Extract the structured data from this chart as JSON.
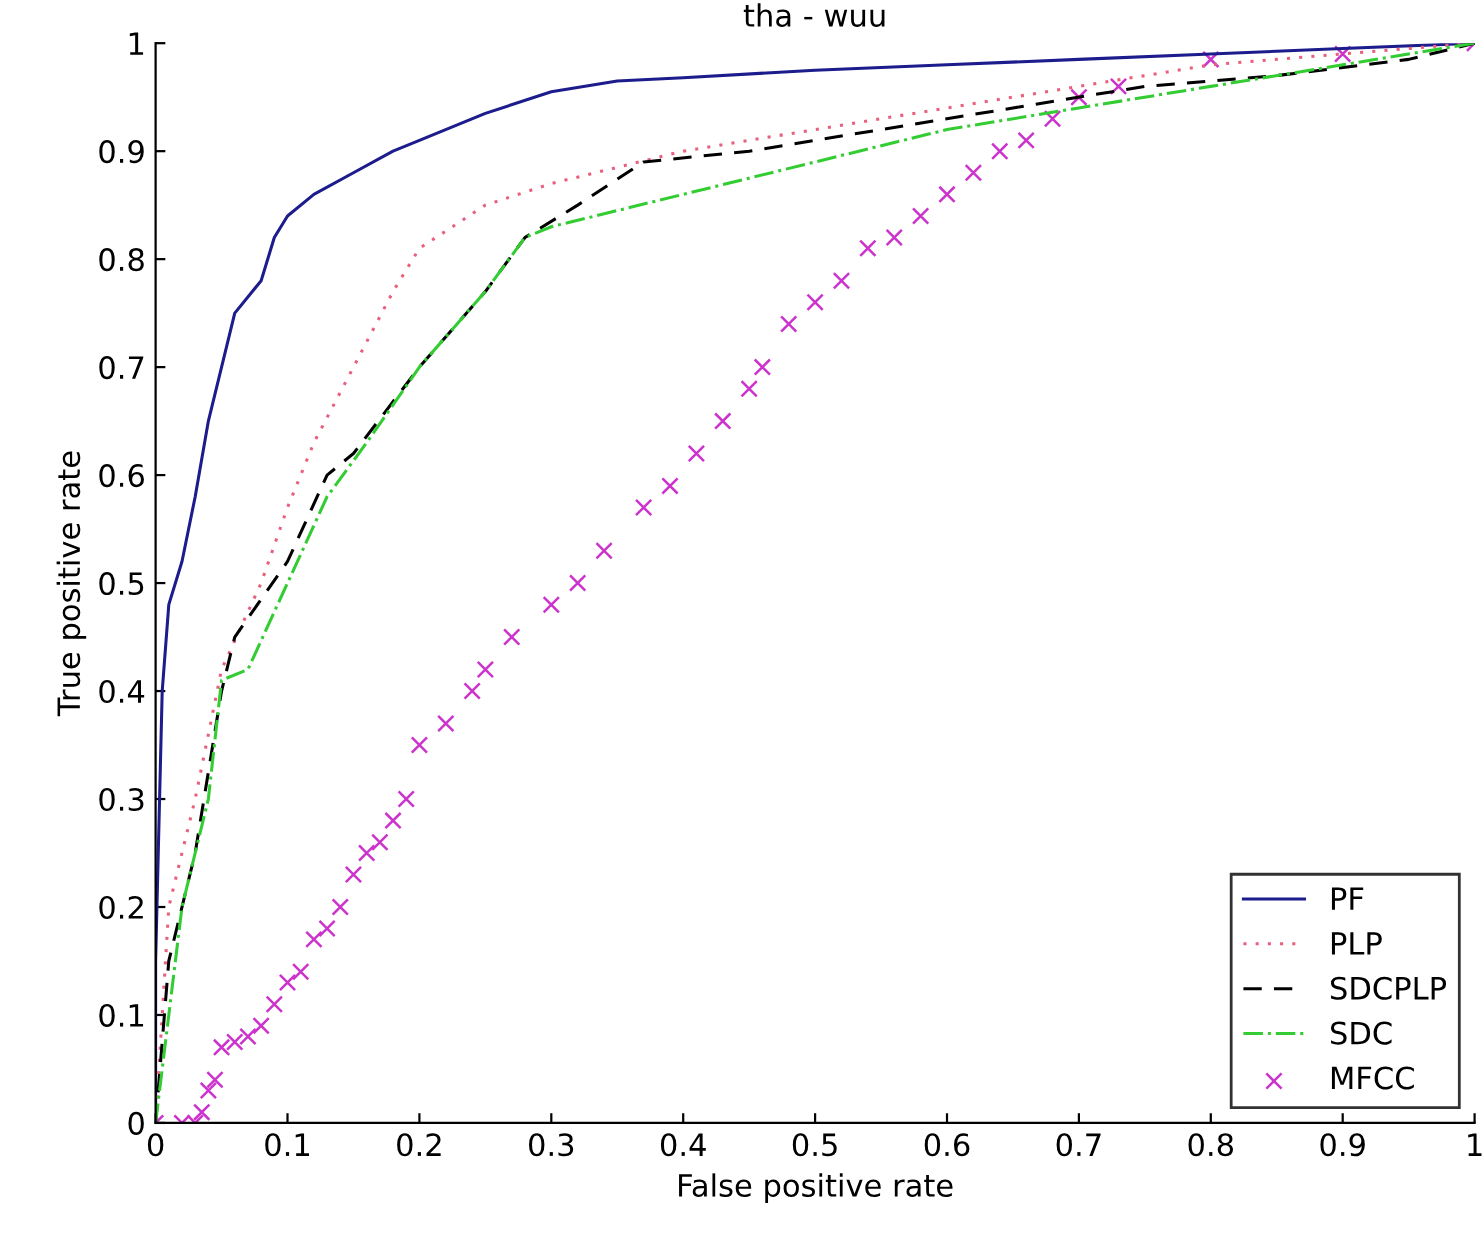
{
  "chart_data": {
    "type": "line",
    "title": "tha - wuu",
    "xlabel": "False positive rate",
    "ylabel": "True positive rate",
    "xlim": [
      0,
      1
    ],
    "ylim": [
      0,
      1
    ],
    "xticks": [
      0,
      0.1,
      0.2,
      0.3,
      0.4,
      0.5,
      0.6,
      0.7,
      0.8,
      0.9,
      1
    ],
    "yticks": [
      0,
      0.1,
      0.2,
      0.3,
      0.4,
      0.5,
      0.6,
      0.7,
      0.8,
      0.9,
      1
    ],
    "grid": false,
    "legend": "bottom right",
    "series": [
      {
        "name": "PF",
        "color": "#1c1c8c",
        "line_style": "solid",
        "marker": "none",
        "x": [
          0,
          0,
          0.005,
          0.01,
          0.02,
          0.03,
          0.04,
          0.05,
          0.06,
          0.08,
          0.09,
          0.1,
          0.12,
          0.15,
          0.18,
          0.2,
          0.25,
          0.3,
          0.35,
          0.4,
          0.5,
          0.6,
          0.7,
          0.8,
          0.9,
          1
        ],
        "values": [
          0,
          0.15,
          0.4,
          0.48,
          0.52,
          0.58,
          0.65,
          0.7,
          0.75,
          0.78,
          0.82,
          0.84,
          0.86,
          0.88,
          0.9,
          0.91,
          0.935,
          0.955,
          0.965,
          0.968,
          0.975,
          0.98,
          0.985,
          0.99,
          0.995,
          1
        ]
      },
      {
        "name": "PLP",
        "color": "#e8607e",
        "line_style": "dotted",
        "marker": "none",
        "x": [
          0,
          0.01,
          0.03,
          0.05,
          0.08,
          0.1,
          0.12,
          0.15,
          0.18,
          0.2,
          0.25,
          0.3,
          0.4,
          0.5,
          0.6,
          0.7,
          0.8,
          0.9,
          1
        ],
        "values": [
          0,
          0.2,
          0.3,
          0.42,
          0.5,
          0.57,
          0.63,
          0.7,
          0.77,
          0.81,
          0.85,
          0.87,
          0.9,
          0.92,
          0.94,
          0.96,
          0.98,
          0.99,
          1
        ]
      },
      {
        "name": "SDCPLP",
        "color": "#000000",
        "line_style": "dashed",
        "marker": "none",
        "x": [
          0,
          0.01,
          0.03,
          0.05,
          0.06,
          0.1,
          0.13,
          0.15,
          0.2,
          0.25,
          0.28,
          0.32,
          0.37,
          0.45,
          0.55,
          0.65,
          0.75,
          0.85,
          0.95,
          1
        ],
        "values": [
          0,
          0.15,
          0.25,
          0.4,
          0.45,
          0.52,
          0.6,
          0.62,
          0.7,
          0.77,
          0.82,
          0.85,
          0.89,
          0.9,
          0.92,
          0.94,
          0.96,
          0.97,
          0.985,
          1
        ]
      },
      {
        "name": "SDC",
        "color": "#33cc33",
        "line_style": "dashdot",
        "marker": "none",
        "x": [
          0,
          0.02,
          0.04,
          0.05,
          0.07,
          0.1,
          0.13,
          0.16,
          0.2,
          0.25,
          0.28,
          0.3,
          0.4,
          0.5,
          0.6,
          0.7,
          0.8,
          0.9,
          1
        ],
        "values": [
          0,
          0.2,
          0.3,
          0.41,
          0.42,
          0.5,
          0.58,
          0.63,
          0.7,
          0.77,
          0.82,
          0.83,
          0.86,
          0.89,
          0.92,
          0.94,
          0.96,
          0.98,
          1
        ]
      },
      {
        "name": "MFCC",
        "type": "scatter",
        "color": "#cc33cc",
        "marker": "cross",
        "x": [
          0,
          0.02,
          0.03,
          0.035,
          0.04,
          0.045,
          0.05,
          0.06,
          0.07,
          0.08,
          0.09,
          0.1,
          0.11,
          0.12,
          0.13,
          0.14,
          0.15,
          0.16,
          0.17,
          0.18,
          0.19,
          0.2,
          0.22,
          0.24,
          0.25,
          0.27,
          0.3,
          0.32,
          0.34,
          0.37,
          0.39,
          0.41,
          0.43,
          0.45,
          0.46,
          0.48,
          0.5,
          0.52,
          0.54,
          0.56,
          0.58,
          0.6,
          0.62,
          0.64,
          0.66,
          0.68,
          0.7,
          0.73,
          0.8,
          0.9,
          1
        ],
        "values": [
          0,
          0,
          0,
          0.01,
          0.03,
          0.04,
          0.07,
          0.075,
          0.08,
          0.09,
          0.11,
          0.13,
          0.14,
          0.17,
          0.18,
          0.2,
          0.23,
          0.25,
          0.26,
          0.28,
          0.3,
          0.35,
          0.37,
          0.4,
          0.42,
          0.45,
          0.48,
          0.5,
          0.53,
          0.57,
          0.59,
          0.62,
          0.65,
          0.68,
          0.7,
          0.74,
          0.76,
          0.78,
          0.81,
          0.82,
          0.84,
          0.86,
          0.88,
          0.9,
          0.91,
          0.93,
          0.95,
          0.96,
          0.985,
          0.99,
          1
        ]
      }
    ]
  }
}
